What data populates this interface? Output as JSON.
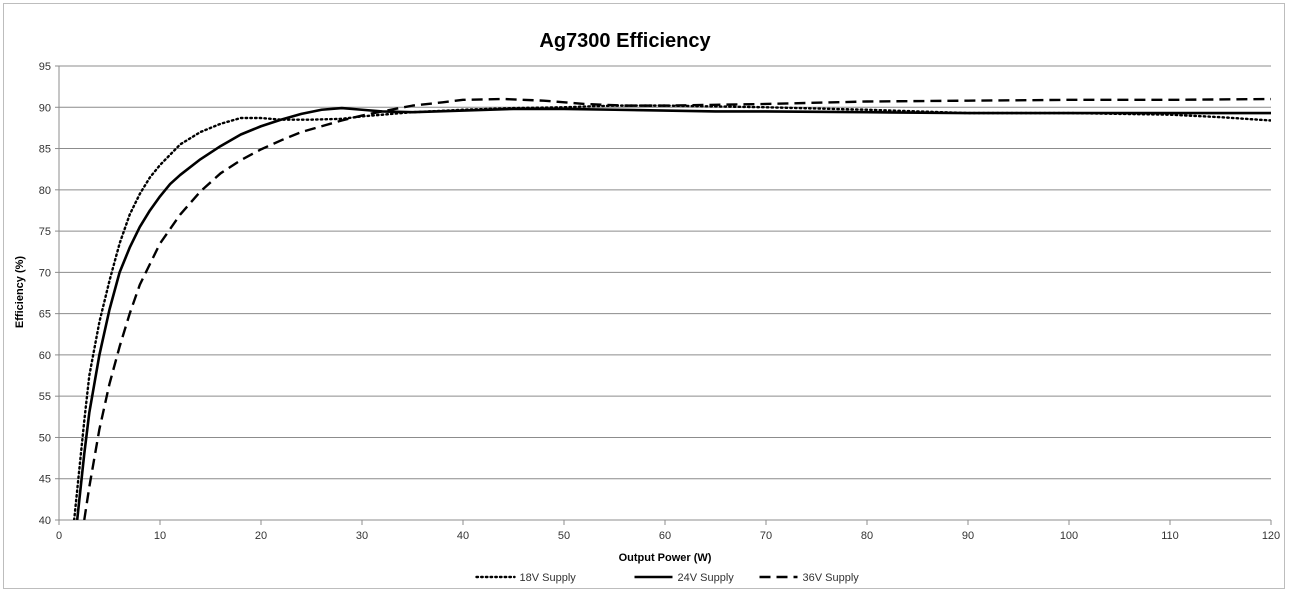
{
  "chart_data": {
    "type": "line",
    "title": "Ag7300 Efficiency",
    "xlabel": "Output Power (W)",
    "ylabel": "Efficiency (%)",
    "xlim": [
      0,
      120
    ],
    "ylim": [
      40,
      95
    ],
    "x_ticks": [
      0,
      10,
      20,
      30,
      40,
      50,
      60,
      70,
      80,
      90,
      100,
      110,
      120
    ],
    "y_ticks": [
      40,
      45,
      50,
      55,
      60,
      65,
      70,
      75,
      80,
      85,
      90,
      95
    ],
    "grid": "horizontal",
    "legend_position": "bottom",
    "series": [
      {
        "name": "18V Supply",
        "line_style": "dotted",
        "color": "#000000",
        "points": [
          [
            1.5,
            40
          ],
          [
            2,
            46
          ],
          [
            2.5,
            52
          ],
          [
            3,
            57.5
          ],
          [
            4,
            64
          ],
          [
            5,
            69
          ],
          [
            6,
            73.5
          ],
          [
            7,
            77
          ],
          [
            8,
            79.5
          ],
          [
            9,
            81.5
          ],
          [
            10,
            83
          ],
          [
            12,
            85.5
          ],
          [
            14,
            87
          ],
          [
            16,
            88
          ],
          [
            18,
            88.7
          ],
          [
            20,
            88.7
          ],
          [
            22,
            88.5
          ],
          [
            25,
            88.5
          ],
          [
            28,
            88.6
          ],
          [
            30,
            88.9
          ],
          [
            35,
            89.4
          ],
          [
            40,
            89.7
          ],
          [
            45,
            89.9
          ],
          [
            50,
            90
          ],
          [
            55,
            90.2
          ],
          [
            60,
            90.2
          ],
          [
            65,
            90.1
          ],
          [
            70,
            90
          ],
          [
            80,
            89.7
          ],
          [
            90,
            89.3
          ],
          [
            100,
            89.3
          ],
          [
            110,
            89.1
          ],
          [
            115,
            88.8
          ],
          [
            120,
            88.4
          ]
        ]
      },
      {
        "name": "24V Supply",
        "line_style": "solid",
        "color": "#000000",
        "points": [
          [
            1.8,
            40
          ],
          [
            2.5,
            48
          ],
          [
            3,
            53
          ],
          [
            4,
            60
          ],
          [
            5,
            65.5
          ],
          [
            6,
            70
          ],
          [
            7,
            73
          ],
          [
            8,
            75.5
          ],
          [
            9,
            77.5
          ],
          [
            10,
            79.2
          ],
          [
            11,
            80.7
          ],
          [
            12,
            81.8
          ],
          [
            14,
            83.7
          ],
          [
            16,
            85.3
          ],
          [
            18,
            86.7
          ],
          [
            20,
            87.7
          ],
          [
            22,
            88.5
          ],
          [
            24,
            89.2
          ],
          [
            26,
            89.7
          ],
          [
            28,
            89.9
          ],
          [
            30,
            89.7
          ],
          [
            32,
            89.5
          ],
          [
            35,
            89.4
          ],
          [
            40,
            89.6
          ],
          [
            45,
            89.8
          ],
          [
            50,
            89.8
          ],
          [
            55,
            89.7
          ],
          [
            60,
            89.6
          ],
          [
            65,
            89.5
          ],
          [
            70,
            89.5
          ],
          [
            80,
            89.4
          ],
          [
            90,
            89.3
          ],
          [
            100,
            89.3
          ],
          [
            110,
            89.3
          ],
          [
            120,
            89.3
          ]
        ]
      },
      {
        "name": "36V Supply",
        "line_style": "dashed",
        "color": "#000000",
        "points": [
          [
            2.5,
            40
          ],
          [
            3,
            44
          ],
          [
            3.5,
            47.5
          ],
          [
            4,
            51
          ],
          [
            5,
            56.5
          ],
          [
            6,
            61
          ],
          [
            7,
            65
          ],
          [
            8,
            68.5
          ],
          [
            9,
            71
          ],
          [
            10,
            73.5
          ],
          [
            12,
            77
          ],
          [
            14,
            79.8
          ],
          [
            16,
            82
          ],
          [
            18,
            83.6
          ],
          [
            20,
            84.9
          ],
          [
            22,
            86
          ],
          [
            24,
            87
          ],
          [
            26,
            87.7
          ],
          [
            28,
            88.4
          ],
          [
            30,
            89
          ],
          [
            32,
            89.5
          ],
          [
            35,
            90.2
          ],
          [
            38,
            90.6
          ],
          [
            40,
            90.9
          ],
          [
            44,
            91
          ],
          [
            48,
            90.8
          ],
          [
            52,
            90.4
          ],
          [
            56,
            90.2
          ],
          [
            60,
            90.2
          ],
          [
            65,
            90.3
          ],
          [
            70,
            90.4
          ],
          [
            80,
            90.7
          ],
          [
            90,
            90.8
          ],
          [
            100,
            90.9
          ],
          [
            110,
            90.9
          ],
          [
            120,
            91
          ]
        ]
      }
    ]
  }
}
